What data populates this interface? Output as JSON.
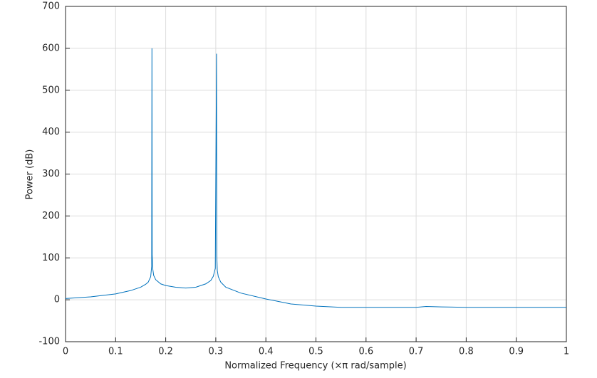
{
  "chart_data": {
    "type": "line",
    "xlabel": "Normalized Frequency  (×π rad/sample)",
    "ylabel": "Power (dB)",
    "x": [
      0,
      0.05,
      0.1,
      0.13,
      0.15,
      0.16,
      0.165,
      0.17,
      0.172,
      0.1725,
      0.173,
      0.174,
      0.176,
      0.18,
      0.19,
      0.2,
      0.22,
      0.24,
      0.26,
      0.28,
      0.29,
      0.295,
      0.299,
      0.3015,
      0.302,
      0.303,
      0.305,
      0.31,
      0.32,
      0.35,
      0.4,
      0.45,
      0.5,
      0.55,
      0.6,
      0.7,
      0.72,
      0.75,
      0.8,
      0.9,
      1
    ],
    "values": [
      3,
      7,
      14,
      22,
      30,
      37,
      42,
      55,
      80,
      600,
      108,
      75,
      58,
      48,
      38,
      34,
      30,
      28,
      30,
      38,
      46,
      56,
      75,
      587,
      105,
      70,
      55,
      42,
      30,
      16,
      2,
      -10,
      -15,
      -18,
      -18,
      -18,
      -16,
      -17,
      -18,
      -18,
      -18
    ],
    "color": "#0072bd",
    "xlim": [
      0,
      1
    ],
    "xticks": [
      0,
      0.1,
      0.2,
      0.3,
      0.4,
      0.5,
      0.6,
      0.7,
      0.8,
      0.9,
      1
    ],
    "ylim": [
      -100,
      700
    ],
    "yticks": [
      -100,
      0,
      100,
      200,
      300,
      400,
      500,
      600,
      700
    ],
    "grid": true
  }
}
